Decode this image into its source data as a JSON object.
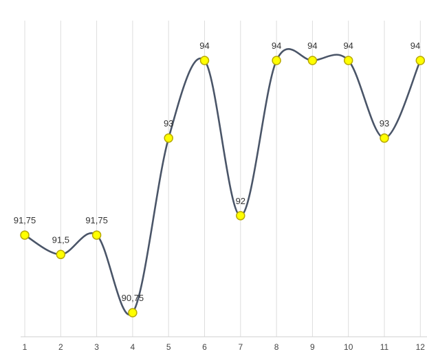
{
  "chart_data": {
    "type": "line",
    "smooth": true,
    "x": [
      "1",
      "2",
      "3",
      "4",
      "5",
      "6",
      "7",
      "8",
      "9",
      "10",
      "11",
      "12"
    ],
    "data_labels": [
      "91,75",
      "91,5",
      "91,75",
      "90,75",
      "93",
      "94",
      "92",
      "94",
      "94",
      "94",
      "93",
      "94"
    ],
    "series": [
      {
        "values": [
          91.75,
          91.5,
          91.75,
          90.75,
          93,
          94,
          92,
          94,
          94,
          94,
          93,
          94
        ]
      }
    ],
    "ylim": [
      90.75,
      94
    ],
    "grid": {
      "vertical": true,
      "horizontal": false
    },
    "legend": "none",
    "y_axis_visible": false,
    "colors": {
      "line": "#4a5568",
      "marker_fill": "#ffff00",
      "marker_stroke": "#b8a900",
      "grid": "#dddddd",
      "label": "#333333"
    }
  }
}
